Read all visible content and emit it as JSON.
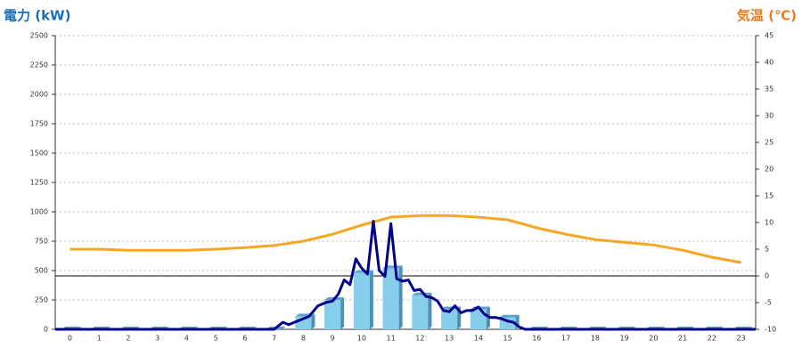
{
  "chart_data": {
    "type": "bar",
    "title": "電力 (kW)",
    "y2_title": "気温 (℃)",
    "categories": [
      "0",
      "1",
      "2",
      "3",
      "4",
      "5",
      "6",
      "7",
      "8",
      "9",
      "10",
      "11",
      "12",
      "13",
      "14",
      "15",
      "16",
      "17",
      "18",
      "19",
      "20",
      "21",
      "22",
      "23"
    ],
    "ylim": [
      0,
      2500
    ],
    "yticks": [
      0,
      250,
      500,
      750,
      1000,
      1250,
      1500,
      1750,
      2000,
      2250,
      2500
    ],
    "y2lim": [
      -10,
      45
    ],
    "y2ticks": [
      -10,
      -5,
      0,
      5,
      10,
      15,
      20,
      25,
      30,
      35,
      40,
      45
    ],
    "grid": true,
    "series": [
      {
        "type": "bar",
        "color": "#87ceeb",
        "values": [
          0,
          0,
          0,
          0,
          0,
          0,
          0,
          0,
          110,
          250,
          480,
          520,
          290,
          170,
          170,
          100,
          0,
          0,
          0,
          0,
          0,
          0,
          0,
          0
        ]
      },
      {
        "type": "line",
        "color": "#00008b",
        "x": [
          -0.5,
          7,
          7.3,
          7.5,
          7.8,
          8,
          8.2,
          8.5,
          8.8,
          9,
          9.2,
          9.4,
          9.6,
          9.8,
          10,
          10.2,
          10.4,
          10.6,
          10.8,
          11,
          11.2,
          11.4,
          11.6,
          11.8,
          12,
          12.2,
          12.4,
          12.6,
          12.8,
          13,
          13.2,
          13.4,
          13.6,
          13.8,
          14,
          14.2,
          14.4,
          14.6,
          14.8,
          15,
          15.2,
          15.4,
          15.6,
          23.5
        ],
        "values": [
          0,
          0,
          60,
          40,
          70,
          90,
          110,
          200,
          230,
          240,
          300,
          420,
          380,
          600,
          520,
          470,
          920,
          500,
          450,
          900,
          430,
          410,
          420,
          330,
          340,
          280,
          270,
          240,
          160,
          150,
          200,
          140,
          160,
          160,
          190,
          130,
          100,
          100,
          90,
          70,
          60,
          20,
          0,
          0
        ]
      },
      {
        "type": "line",
        "axis": "y2",
        "color": "#f5a623",
        "values": [
          5,
          5,
          4.8,
          4.8,
          4.8,
          5,
          5.3,
          5.7,
          6.5,
          7.8,
          9.5,
          11,
          11.3,
          11.3,
          11,
          10.5,
          9,
          7.8,
          6.8,
          6.3,
          5.8,
          4.8,
          3.5,
          2.5
        ]
      }
    ]
  }
}
